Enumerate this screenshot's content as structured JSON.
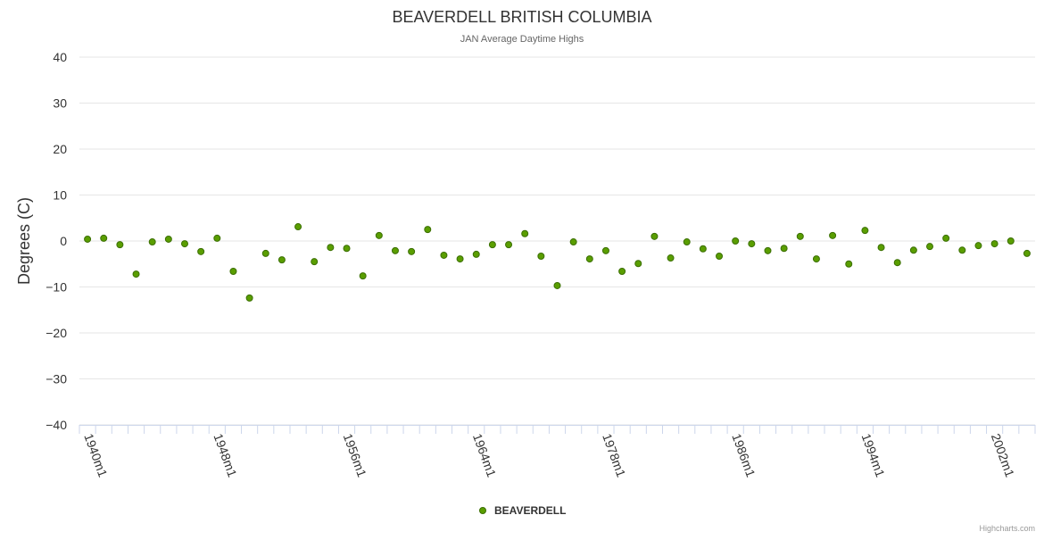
{
  "chart_data": {
    "type": "scatter",
    "title": "BEAVERDELL BRITISH COLUMBIA",
    "subtitle": "JAN Average Daytime Highs",
    "xlabel": "",
    "ylabel": "Degrees (C)",
    "ylim": [
      -40,
      40
    ],
    "yticks": [
      40,
      30,
      20,
      10,
      0,
      -10,
      -20,
      -30,
      -40
    ],
    "grid": true,
    "legend_position": "bottom-center",
    "credits": "Highcharts.com",
    "categories": [
      "1940m1",
      "1941m1",
      "1942m1",
      "1943m1",
      "1944m1",
      "1945m1",
      "1946m1",
      "1947m1",
      "1948m1",
      "1949m1",
      "1950m1",
      "1951m1",
      "1952m1",
      "1953m1",
      "1954m1",
      "1955m1",
      "1956m1",
      "1957m1",
      "1958m1",
      "1959m1",
      "1960m1",
      "1961m1",
      "1962m1",
      "1963m1",
      "1964m1",
      "1965m1",
      "1966m1",
      "1967m1",
      "1968m1",
      "1969m1",
      "1970m1",
      "1971m1",
      "1978m1",
      "1979m1",
      "1980m1",
      "1981m1",
      "1982m1",
      "1983m1",
      "1984m1",
      "1985m1",
      "1986m1",
      "1987m1",
      "1988m1",
      "1989m1",
      "1990m1",
      "1991m1",
      "1992m1",
      "1993m1",
      "1994m1",
      "1995m1",
      "1996m1",
      "1997m1",
      "1998m1",
      "1999m1",
      "2000m1",
      "2001m1",
      "2002m1",
      "2003m1",
      "2004m1"
    ],
    "label_every": 8,
    "series": [
      {
        "name": "BEAVERDELL",
        "color": "#5a9e00",
        "values": [
          0.4,
          0.6,
          -0.8,
          -7.2,
          -0.2,
          0.4,
          -0.6,
          -2.3,
          0.6,
          -6.6,
          -12.4,
          -2.7,
          -4.1,
          3.1,
          -4.5,
          -1.4,
          -1.6,
          -7.6,
          1.2,
          -2.1,
          -2.3,
          2.5,
          -3.1,
          -3.9,
          -2.9,
          -0.8,
          -0.8,
          1.6,
          -3.3,
          -9.7,
          -0.2,
          -3.9,
          -2.1,
          -6.6,
          -4.9,
          1.0,
          -3.7,
          -0.2,
          -1.7,
          -3.3,
          0.0,
          -0.6,
          -2.1,
          -1.6,
          1.0,
          -3.9,
          1.2,
          -5.0,
          2.3,
          -1.4,
          -4.7,
          -2.0,
          -1.2,
          0.6,
          -2.0,
          -1.0,
          -0.6,
          0.0,
          -2.7
        ]
      }
    ]
  }
}
